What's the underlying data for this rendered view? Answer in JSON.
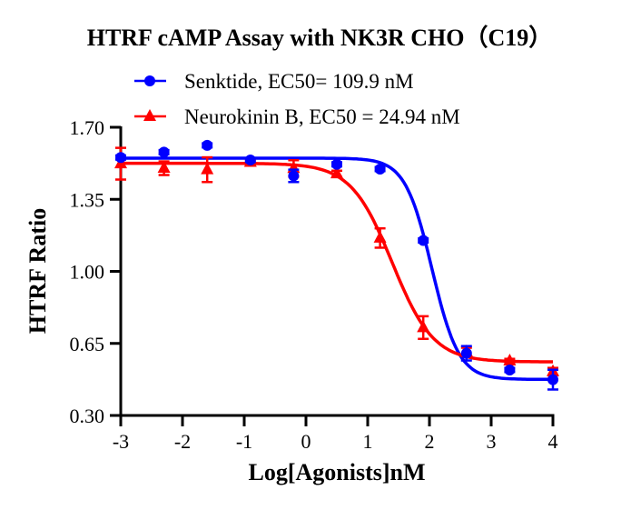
{
  "chart_data": {
    "type": "scatter",
    "title": "HTRF cAMP Assay with NK3R CHO（C19）",
    "xlabel": "Log[Agonists]nM",
    "ylabel": "HTRF Ratio",
    "xlim": [
      -3,
      4
    ],
    "ylim": [
      0.3,
      1.7
    ],
    "xticks": [
      "-3",
      "-2",
      "-1",
      "0",
      "1",
      "2",
      "3",
      "4"
    ],
    "yticks": [
      "0.30",
      "0.65",
      "1.00",
      "1.35",
      "1.70"
    ],
    "grid": false,
    "legend_position": "top",
    "series": [
      {
        "name": "Senktide, EC50= 109.9 nM",
        "color": "#0000ff",
        "marker": "circle",
        "x": [
          -3,
          -2.3,
          -1.6,
          -0.9,
          -0.2,
          0.5,
          1.2,
          1.9,
          2.6,
          3.3,
          4
        ],
        "y": [
          1.553,
          1.579,
          1.612,
          1.541,
          1.464,
          1.52,
          1.497,
          1.15,
          0.602,
          0.521,
          0.474
        ],
        "error": [
          0.01,
          0.01,
          0.01,
          0.01,
          0.03,
          0.01,
          0.01,
          0.01,
          0.035,
          0.01,
          0.048
        ],
        "fit": {
          "top": 1.55,
          "bottom": 0.475,
          "logEC50": 2.041,
          "hill": 2.0
        }
      },
      {
        "name": "Neurokinin B,  EC50 = 24.94 nM",
        "color": "#ff0000",
        "marker": "triangle",
        "x": [
          -3,
          -2.3,
          -1.6,
          -0.9,
          -0.2,
          0.5,
          1.2,
          1.9,
          2.6,
          3.3,
          4
        ],
        "y": [
          1.523,
          1.501,
          1.494,
          1.53,
          1.5,
          1.474,
          1.162,
          0.727,
          0.609,
          0.565,
          0.513
        ],
        "error": [
          0.077,
          0.033,
          0.06,
          0.01,
          0.04,
          0.015,
          0.047,
          0.055,
          0.02,
          0.01,
          0.018
        ],
        "fit": {
          "top": 1.525,
          "bottom": 0.56,
          "logEC50": 1.397,
          "hill": 1.3
        }
      }
    ]
  }
}
